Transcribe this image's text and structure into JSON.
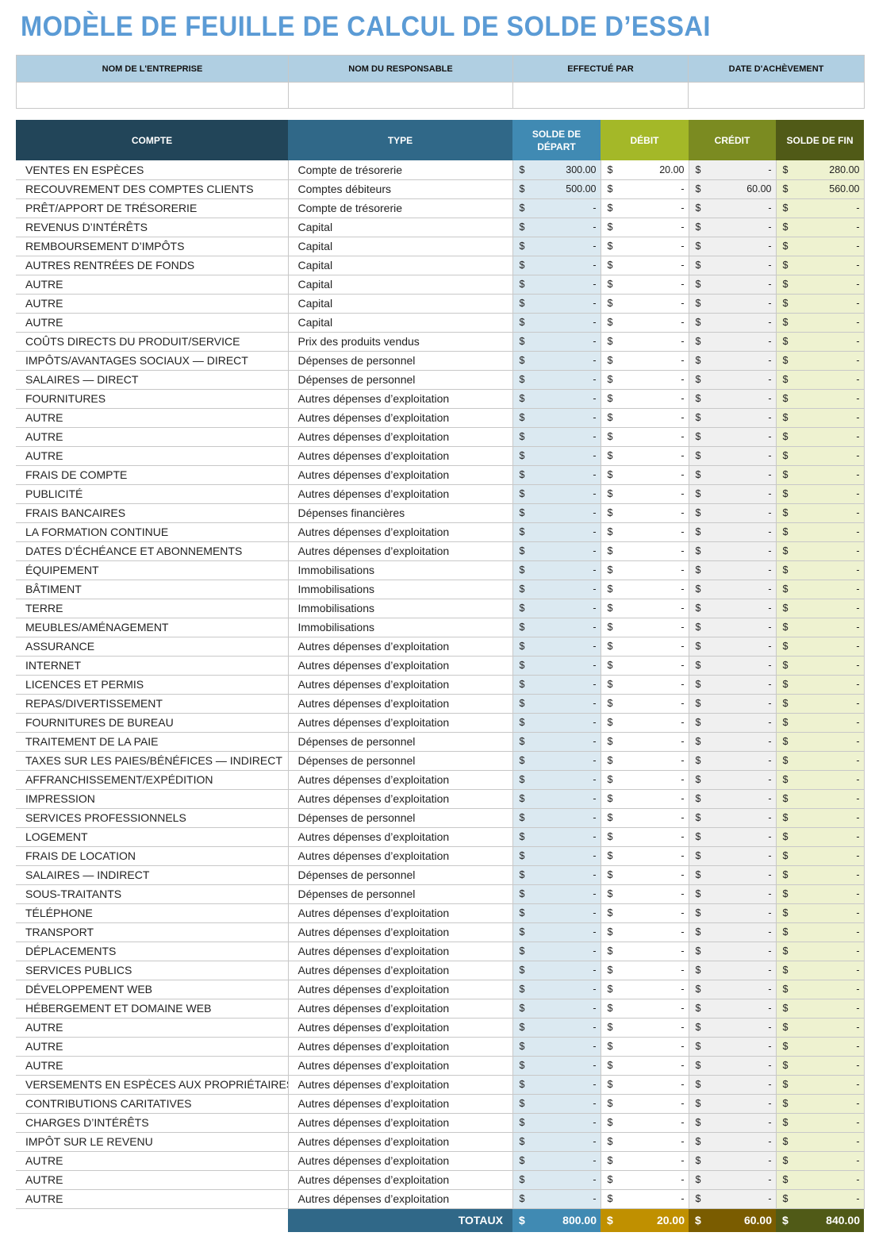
{
  "title": "MODÈLE DE FEUILLE DE CALCUL DE SOLDE D’ESSAI",
  "info": {
    "headers": [
      "NOM DE L'ENTREPRISE",
      "NOM DU RESPONSABLE",
      "EFFECTUÉ PAR",
      "DATE D'ACHÈVEMENT"
    ],
    "values": [
      "",
      "",
      "",
      ""
    ]
  },
  "columns": [
    "COMPTE",
    "TYPE",
    "SOLDE DE DÉPART",
    "DÉBIT",
    "CRÉDIT",
    "SOLDE DE FIN"
  ],
  "colors": {
    "compte": "#224559",
    "type": "#306888",
    "start": "#408ab3",
    "debit": "#a4b828",
    "credit": "#7b8b21",
    "end": "#505a17",
    "tot_debit": "#c09000",
    "tot_credit": "#7a5c00"
  },
  "currency": "$",
  "rows": [
    [
      "VENTES EN ESPÈCES",
      "Compte de trésorerie",
      "300.00",
      "20.00",
      "-",
      "280.00"
    ],
    [
      "RECOUVREMENT DES COMPTES CLIENTS",
      "Comptes débiteurs",
      "500.00",
      "-",
      "60.00",
      "560.00"
    ],
    [
      "PRÊT/APPORT DE TRÉSORERIE",
      "Compte de trésorerie",
      "-",
      "-",
      "-",
      "-"
    ],
    [
      "REVENUS D’INTÉRÊTS",
      "Capital",
      "-",
      "-",
      "-",
      "-"
    ],
    [
      "REMBOURSEMENT D’IMPÔTS",
      "Capital",
      "-",
      "-",
      "-",
      "-"
    ],
    [
      "AUTRES RENTRÉES DE FONDS",
      "Capital",
      "-",
      "-",
      "-",
      "-"
    ],
    [
      "AUTRE",
      "Capital",
      "-",
      "-",
      "-",
      "-"
    ],
    [
      "AUTRE",
      "Capital",
      "-",
      "-",
      "-",
      "-"
    ],
    [
      "AUTRE",
      "Capital",
      "-",
      "-",
      "-",
      "-"
    ],
    [
      "COÛTS DIRECTS DU PRODUIT/SERVICE",
      "Prix des produits vendus",
      "-",
      "-",
      "-",
      "-"
    ],
    [
      "IMPÔTS/AVANTAGES SOCIAUX — DIRECT",
      "Dépenses de personnel",
      "-",
      "-",
      "-",
      "-"
    ],
    [
      "SALAIRES — DIRECT",
      "Dépenses de personnel",
      "-",
      "-",
      "-",
      "-"
    ],
    [
      "FOURNITURES",
      "Autres dépenses d’exploitation",
      "-",
      "-",
      "-",
      "-"
    ],
    [
      "AUTRE",
      "Autres dépenses d’exploitation",
      "-",
      "-",
      "-",
      "-"
    ],
    [
      "AUTRE",
      "Autres dépenses d’exploitation",
      "-",
      "-",
      "-",
      "-"
    ],
    [
      "AUTRE",
      "Autres dépenses d’exploitation",
      "-",
      "-",
      "-",
      "-"
    ],
    [
      "FRAIS DE COMPTE",
      "Autres dépenses d’exploitation",
      "-",
      "-",
      "-",
      "-"
    ],
    [
      "PUBLICITÉ",
      "Autres dépenses d’exploitation",
      "-",
      "-",
      "-",
      "-"
    ],
    [
      "FRAIS BANCAIRES",
      "Dépenses financières",
      "-",
      "-",
      "-",
      "-"
    ],
    [
      "LA FORMATION CONTINUE",
      "Autres dépenses d’exploitation",
      "-",
      "-",
      "-",
      "-"
    ],
    [
      "DATES D’ÉCHÉANCE ET ABONNEMENTS",
      "Autres dépenses d’exploitation",
      "-",
      "-",
      "-",
      "-"
    ],
    [
      "ÉQUIPEMENT",
      "Immobilisations",
      "-",
      "-",
      "-",
      "-"
    ],
    [
      "BÂTIMENT",
      "Immobilisations",
      "-",
      "-",
      "-",
      "-"
    ],
    [
      "TERRE",
      "Immobilisations",
      "-",
      "-",
      "-",
      "-"
    ],
    [
      "MEUBLES/AMÉNAGEMENT",
      "Immobilisations",
      "-",
      "-",
      "-",
      "-"
    ],
    [
      "ASSURANCE",
      "Autres dépenses d’exploitation",
      "-",
      "-",
      "-",
      "-"
    ],
    [
      "INTERNET",
      "Autres dépenses d’exploitation",
      "-",
      "-",
      "-",
      "-"
    ],
    [
      "LICENCES ET PERMIS",
      "Autres dépenses d’exploitation",
      "-",
      "-",
      "-",
      "-"
    ],
    [
      "REPAS/DIVERTISSEMENT",
      "Autres dépenses d’exploitation",
      "-",
      "-",
      "-",
      "-"
    ],
    [
      "FOURNITURES DE BUREAU",
      "Autres dépenses d’exploitation",
      "-",
      "-",
      "-",
      "-"
    ],
    [
      "TRAITEMENT DE LA PAIE",
      "Dépenses de personnel",
      "-",
      "-",
      "-",
      "-"
    ],
    [
      "TAXES SUR LES PAIES/BÉNÉFICES — INDIRECT",
      "Dépenses de personnel",
      "-",
      "-",
      "-",
      "-"
    ],
    [
      "AFFRANCHISSEMENT/EXPÉDITION",
      "Autres dépenses d’exploitation",
      "-",
      "-",
      "-",
      "-"
    ],
    [
      "IMPRESSION",
      "Autres dépenses d’exploitation",
      "-",
      "-",
      "-",
      "-"
    ],
    [
      "SERVICES PROFESSIONNELS",
      "Dépenses de personnel",
      "-",
      "-",
      "-",
      "-"
    ],
    [
      "LOGEMENT",
      "Autres dépenses d’exploitation",
      "-",
      "-",
      "-",
      "-"
    ],
    [
      "FRAIS DE LOCATION",
      "Autres dépenses d’exploitation",
      "-",
      "-",
      "-",
      "-"
    ],
    [
      "SALAIRES — INDIRECT",
      "Dépenses de personnel",
      "-",
      "-",
      "-",
      "-"
    ],
    [
      "SOUS-TRAITANTS",
      "Dépenses de personnel",
      "-",
      "-",
      "-",
      "-"
    ],
    [
      "TÉLÉPHONE",
      "Autres dépenses d’exploitation",
      "-",
      "-",
      "-",
      "-"
    ],
    [
      "TRANSPORT",
      "Autres dépenses d’exploitation",
      "-",
      "-",
      "-",
      "-"
    ],
    [
      "DÉPLACEMENTS",
      "Autres dépenses d’exploitation",
      "-",
      "-",
      "-",
      "-"
    ],
    [
      "SERVICES PUBLICS",
      "Autres dépenses d’exploitation",
      "-",
      "-",
      "-",
      "-"
    ],
    [
      "DÉVELOPPEMENT WEB",
      "Autres dépenses d’exploitation",
      "-",
      "-",
      "-",
      "-"
    ],
    [
      "HÉBERGEMENT ET DOMAINE WEB",
      "Autres dépenses d’exploitation",
      "-",
      "-",
      "-",
      "-"
    ],
    [
      "AUTRE",
      "Autres dépenses d’exploitation",
      "-",
      "-",
      "-",
      "-"
    ],
    [
      "AUTRE",
      "Autres dépenses d’exploitation",
      "-",
      "-",
      "-",
      "-"
    ],
    [
      "AUTRE",
      "Autres dépenses d’exploitation",
      "-",
      "-",
      "-",
      "-"
    ],
    [
      "VERSEMENTS EN ESPÈCES AUX PROPRIÉTAIRES",
      "Autres dépenses d’exploitation",
      "-",
      "-",
      "-",
      "-"
    ],
    [
      "CONTRIBUTIONS CARITATIVES",
      "Autres dépenses d’exploitation",
      "-",
      "-",
      "-",
      "-"
    ],
    [
      "CHARGES D’INTÉRÊTS",
      "Autres dépenses d’exploitation",
      "-",
      "-",
      "-",
      "-"
    ],
    [
      "IMPÔT SUR LE REVENU",
      "Autres dépenses d’exploitation",
      "-",
      "-",
      "-",
      "-"
    ],
    [
      "AUTRE",
      "Autres dépenses d’exploitation",
      "-",
      "-",
      "-",
      "-"
    ],
    [
      "AUTRE",
      "Autres dépenses d’exploitation",
      "-",
      "-",
      "-",
      "-"
    ],
    [
      "AUTRE",
      "Autres dépenses d’exploitation",
      "-",
      "-",
      "-",
      "-"
    ]
  ],
  "totals": {
    "label": "TOTAUX",
    "start": "800.00",
    "debit": "20.00",
    "credit": "60.00",
    "end": "840.00"
  }
}
